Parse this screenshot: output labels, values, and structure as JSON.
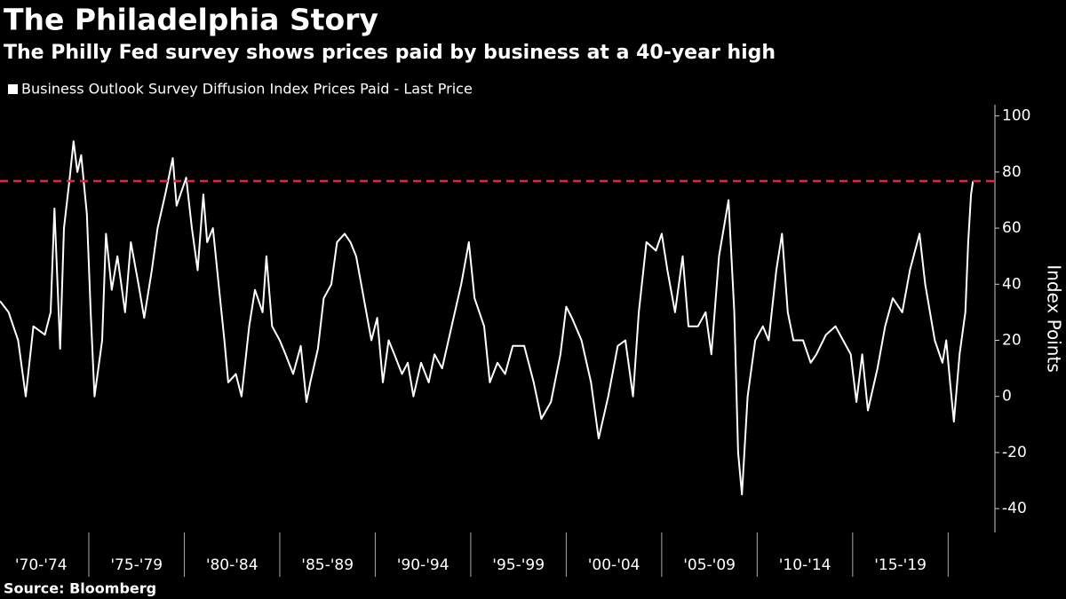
{
  "chart_data": {
    "type": "line",
    "title": "The Philadelphia Story",
    "subtitle": "The Philly Fed survey shows prices paid by business at a 40-year high",
    "source": "Source: Bloomberg",
    "y_label": "Index Points",
    "series": [
      {
        "name": "Business Outlook Survey Diffusion Index Prices Paid - Last Price",
        "color": "#ffffff",
        "x": [
          1970.35,
          1970.8,
          1971.3,
          1971.7,
          1972.1,
          1972.7,
          1973.0,
          1973.2,
          1973.5,
          1973.7,
          1974.0,
          1974.2,
          1974.4,
          1974.6,
          1974.9,
          1975.1,
          1975.3,
          1975.7,
          1975.9,
          1976.2,
          1976.5,
          1976.9,
          1977.2,
          1977.6,
          1977.9,
          1978.3,
          1978.6,
          1979.0,
          1979.4,
          1979.6,
          1980.1,
          1980.4,
          1980.7,
          1981.0,
          1981.2,
          1981.5,
          1981.8,
          1982.1,
          1982.3,
          1982.7,
          1983.0,
          1983.4,
          1983.7,
          1984.1,
          1984.3,
          1984.6,
          1985.0,
          1985.3,
          1985.7,
          1986.1,
          1986.4,
          1986.6,
          1987.0,
          1987.3,
          1987.7,
          1988.0,
          1988.4,
          1988.7,
          1989.0,
          1989.4,
          1989.8,
          1990.1,
          1990.4,
          1990.7,
          1991.0,
          1991.4,
          1991.7,
          1992.0,
          1992.4,
          1992.8,
          1993.1,
          1993.5,
          1994.0,
          1994.5,
          1994.9,
          1995.2,
          1995.7,
          1996.0,
          1996.4,
          1996.8,
          1997.2,
          1997.8,
          1998.3,
          1998.7,
          1999.2,
          1999.7,
          2000.0,
          2000.3,
          2000.8,
          2001.3,
          2001.7,
          2002.2,
          2002.7,
          2003.1,
          2003.5,
          2003.8,
          2004.2,
          2004.7,
          2005.0,
          2005.3,
          2005.7,
          2006.1,
          2006.4,
          2006.9,
          2007.3,
          2007.6,
          2008.0,
          2008.5,
          2008.8,
          2009.0,
          2009.2,
          2009.5,
          2009.9,
          2010.3,
          2010.6,
          2011.0,
          2011.3,
          2011.6,
          2011.9,
          2012.4,
          2012.8,
          2013.1,
          2013.6,
          2014.1,
          2014.5,
          2014.9,
          2015.2,
          2015.5,
          2015.8,
          2016.3,
          2016.7,
          2017.1,
          2017.6,
          2018.0,
          2018.5,
          2018.8,
          2019.3,
          2019.7,
          2019.9,
          2020.1,
          2020.3,
          2020.6,
          2020.9,
          2021.05,
          2021.2,
          2021.3
        ],
        "values": [
          34,
          30,
          20,
          0,
          25,
          22,
          30,
          67,
          17,
          60,
          78,
          91,
          80,
          86,
          65,
          30,
          0,
          20,
          58,
          38,
          50,
          30,
          55,
          40,
          28,
          45,
          60,
          72,
          85,
          68,
          78,
          60,
          45,
          72,
          55,
          60,
          40,
          20,
          5,
          8,
          0,
          25,
          38,
          30,
          50,
          25,
          20,
          15,
          8,
          18,
          -2,
          5,
          17,
          35,
          40,
          55,
          58,
          55,
          50,
          35,
          20,
          28,
          5,
          20,
          15,
          8,
          12,
          0,
          12,
          5,
          15,
          10,
          25,
          40,
          55,
          35,
          25,
          5,
          12,
          8,
          18,
          18,
          5,
          -8,
          -2,
          15,
          32,
          28,
          20,
          5,
          -15,
          0,
          18,
          20,
          0,
          30,
          55,
          52,
          58,
          45,
          30,
          50,
          25,
          25,
          30,
          15,
          50,
          70,
          30,
          -20,
          -35,
          0,
          20,
          25,
          20,
          45,
          58,
          30,
          20,
          20,
          12,
          15,
          22,
          25,
          20,
          15,
          -2,
          15,
          -5,
          10,
          25,
          35,
          30,
          45,
          58,
          40,
          20,
          12,
          20,
          5,
          -9,
          15,
          30,
          55,
          72,
          76.8
        ]
      }
    ],
    "reference_line": {
      "value": 76.8,
      "color": "#e8213c"
    },
    "xlim": [
      1970.35,
      2022.45
    ],
    "xticks": [
      {
        "value": 1972.5,
        "label": "'70-'74"
      },
      {
        "value": 1977.5,
        "label": "'75-'79"
      },
      {
        "value": 1982.5,
        "label": "'80-'84"
      },
      {
        "value": 1987.5,
        "label": "'85-'89"
      },
      {
        "value": 1992.5,
        "label": "'90-'94"
      },
      {
        "value": 1997.5,
        "label": "'95-'99"
      },
      {
        "value": 2002.5,
        "label": "'00-'04"
      },
      {
        "value": 2007.5,
        "label": "'05-'09"
      },
      {
        "value": 2012.5,
        "label": "'10-'14"
      },
      {
        "value": 2017.5,
        "label": "'15-'19"
      }
    ],
    "ylim": [
      -48.5,
      104
    ],
    "yticks": [
      -40,
      -20,
      0,
      20,
      40,
      60,
      80,
      100
    ]
  }
}
